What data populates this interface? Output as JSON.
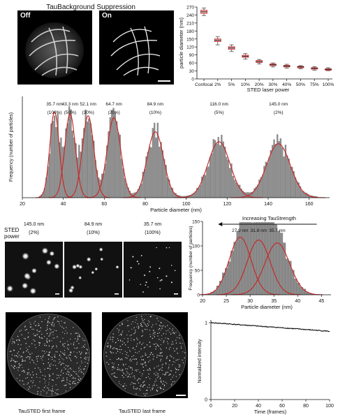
{
  "panel_a": {
    "title": "TauBackground Suppression",
    "image_labels": [
      "Off",
      "On"
    ]
  },
  "colors": {
    "curve": "#cc2222",
    "bar": "#8c8c8c",
    "bar_edge": "#6a6a6a",
    "box": "#f4c9c9",
    "box_edge": "#cc2222"
  },
  "chart_data": [
    {
      "type": "box",
      "id": "diameter-vs-power",
      "ylabel": "particle diameter (nm)",
      "xlabel": "STED laser power",
      "ylim": [
        0,
        270
      ],
      "yticks": [
        0,
        30,
        60,
        90,
        120,
        150,
        180,
        210,
        240,
        270
      ],
      "categories": [
        "Confocal",
        "2%",
        "5%",
        "10%",
        "20%",
        "30%",
        "40%",
        "50%",
        "75%",
        "100%"
      ],
      "median": [
        252,
        145,
        116,
        85,
        65,
        53,
        48,
        45,
        40,
        36
      ],
      "q1": [
        246,
        140,
        111,
        81,
        62,
        50,
        45,
        42,
        37,
        34
      ],
      "q3": [
        258,
        150,
        121,
        89,
        69,
        56,
        51,
        47,
        42,
        38
      ],
      "whisker_low": [
        238,
        128,
        104,
        74,
        56,
        45,
        41,
        38,
        33,
        31
      ],
      "whisker_high": [
        266,
        158,
        128,
        95,
        73,
        60,
        55,
        50,
        46,
        42
      ]
    },
    {
      "type": "histogram",
      "id": "diameter-histogram",
      "ylabel": "Frequency (number of particles)",
      "xlabel": "Particle diameter (nm)",
      "xlim": [
        20,
        170
      ],
      "xticks": [
        20,
        40,
        60,
        80,
        100,
        120,
        140,
        160
      ],
      "ylim": [
        0,
        1
      ],
      "peaks": [
        {
          "size": "35.7 nm",
          "power": "(100%)",
          "mu": 35.7,
          "sigma": 2.3,
          "amp": 0.86
        },
        {
          "size": "43.3 nm",
          "power": "(50%)",
          "mu": 43.3,
          "sigma": 2.6,
          "amp": 0.84
        },
        {
          "size": "52.1 nm",
          "power": "(30%)",
          "mu": 52.1,
          "sigma": 2.8,
          "amp": 0.82
        },
        {
          "size": "64.7 nm",
          "power": "(20%)",
          "mu": 64.7,
          "sigma": 3.3,
          "amp": 0.8
        },
        {
          "size": "84.9 nm",
          "power": "(10%)",
          "mu": 84.9,
          "sigma": 4.0,
          "amp": 0.66
        },
        {
          "size": "116.0 nm",
          "power": "(5%)",
          "mu": 116.0,
          "sigma": 5.4,
          "amp": 0.56
        },
        {
          "size": "145.0 nm",
          "power": "(2%)",
          "mu": 145.0,
          "sigma": 5.8,
          "amp": 0.54
        }
      ]
    },
    {
      "type": "histogram",
      "id": "tau-strength-histogram",
      "ylabel": "Frequency (number of particles)",
      "xlabel": "Particle diameter (nm)",
      "xlim": [
        20,
        47
      ],
      "xticks": [
        20,
        25,
        30,
        35,
        40,
        45
      ],
      "ylim": [
        0,
        150
      ],
      "yticks": [
        0,
        50,
        100,
        150
      ],
      "annotation": "Increasing TauStrength",
      "peaks": [
        {
          "size": "27.9 nm",
          "mu": 27.9,
          "sigma": 2.3,
          "amp": 118
        },
        {
          "size": "31.8 nm",
          "mu": 31.8,
          "sigma": 2.4,
          "amp": 112
        },
        {
          "size": "35.7 nm",
          "mu": 35.7,
          "sigma": 2.6,
          "amp": 106
        }
      ]
    },
    {
      "type": "line",
      "id": "intensity-vs-time",
      "ylabel": "Normalized intensity",
      "xlabel": "Time (frames)",
      "xlim": [
        0,
        100
      ],
      "xticks": [
        0,
        20,
        40,
        60,
        80,
        100
      ],
      "ylim": [
        0,
        1
      ],
      "yticks": [
        0,
        1
      ],
      "x": [
        0,
        5,
        10,
        15,
        20,
        25,
        30,
        35,
        40,
        45,
        50,
        55,
        60,
        65,
        70,
        75,
        80,
        85,
        90,
        95,
        100
      ],
      "y": [
        1.0,
        0.995,
        0.99,
        0.985,
        0.978,
        0.972,
        0.967,
        0.962,
        0.955,
        0.95,
        0.944,
        0.94,
        0.934,
        0.928,
        0.922,
        0.917,
        0.911,
        0.906,
        0.9,
        0.894,
        0.888
      ]
    }
  ],
  "panel_c": {
    "row_label": [
      "STED",
      "power"
    ],
    "images": [
      {
        "size": "145.0 nm",
        "power": "(2%)"
      },
      {
        "size": "84.9 nm",
        "power": "(10%)"
      },
      {
        "size": "35.7 nm",
        "power": "(100%)"
      }
    ]
  },
  "panel_e": {
    "captions": [
      "TauSTED first frame",
      "TauSTED last frame"
    ]
  }
}
